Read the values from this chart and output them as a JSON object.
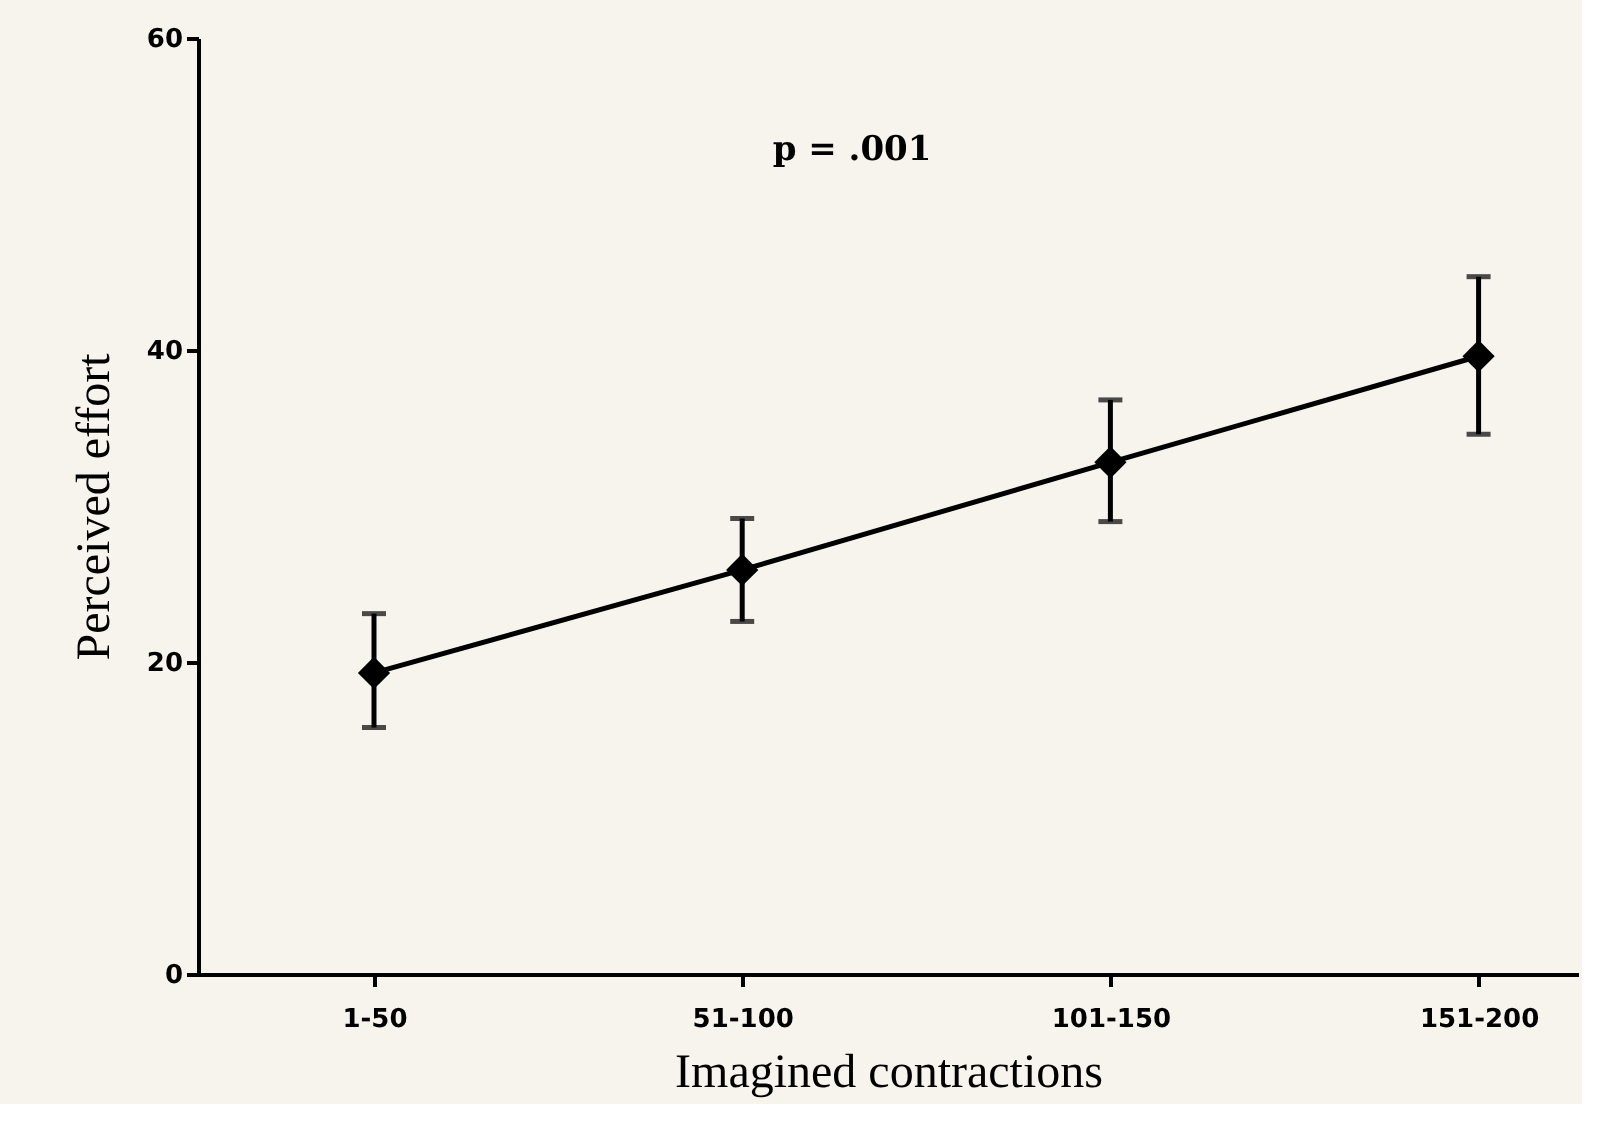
{
  "chart_data": {
    "type": "line",
    "xlabel": "Imagined contractions",
    "ylabel": "Perceived effort",
    "categories": [
      "1-50",
      "51-100",
      "101-150",
      "151-200"
    ],
    "series": [
      {
        "color": "#000000",
        "values": [
          19.3,
          25.9,
          32.8,
          39.6
        ],
        "errors": [
          [
            15.8,
            23.1
          ],
          [
            22.6,
            29.2
          ],
          [
            29.0,
            36.8
          ],
          [
            34.6,
            44.7
          ]
        ]
      }
    ],
    "ylim": [
      0,
      60
    ],
    "yticks": [
      0,
      20,
      40,
      60
    ],
    "grid": false,
    "marker": "diamond",
    "line_style": "solid",
    "annotations": [
      "p = .001"
    ]
  }
}
